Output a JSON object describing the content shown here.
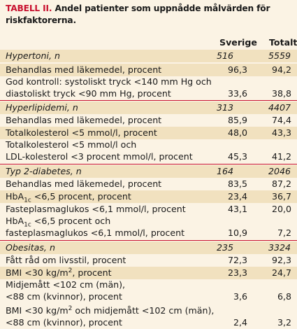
{
  "title": {
    "label": "TABELL II.",
    "text": "Andel patienter som uppnådde målvärden för riskfaktorerna."
  },
  "columns": [
    "Sverige",
    "Totalt"
  ],
  "rows": [
    {
      "kind": "group",
      "label": "Hypertoni, n",
      "sverige": "516",
      "totalt": "5559"
    },
    {
      "kind": "item",
      "label": "Behandlas med läkemedel, procent",
      "sverige": "96,3",
      "totalt": "94,2"
    },
    {
      "kind": "item",
      "label": "God kontroll: systoliskt tryck <140 mm Hg och",
      "label2": "diastoliskt tryck <90 mm Hg, procent",
      "sverige": "33,6",
      "totalt": "38,8"
    },
    {
      "kind": "group",
      "label": "Hyperlipidemi, n",
      "sverige": "313",
      "totalt": "4407"
    },
    {
      "kind": "item",
      "label": "Behandlas med läkemedel, procent",
      "sverige": "85,9",
      "totalt": "74,4"
    },
    {
      "kind": "item",
      "label": "Totalkolesterol <5 mmol/l, procent",
      "sverige": "48,0",
      "totalt": "43,3"
    },
    {
      "kind": "item",
      "label": "Totalkolesterol <5 mmol/l och",
      "label2": "LDL-kolesterol <3 procent mmol/l, procent",
      "sverige": "45,3",
      "totalt": "41,2"
    },
    {
      "kind": "group",
      "label": "Typ 2-diabetes, n",
      "sverige": "164",
      "totalt": "2046"
    },
    {
      "kind": "item",
      "label": "Behandlas med läkemedel, procent",
      "sverige": "83,5",
      "totalt": "87,2"
    },
    {
      "kind": "item",
      "label": "HbA1c <6,5 procent, procent",
      "sverige": "23,4",
      "totalt": "36,7"
    },
    {
      "kind": "item",
      "label": "Fasteplasmaglukos <6,1 mmol/l, procent",
      "sverige": "43,1",
      "totalt": "20,0"
    },
    {
      "kind": "item",
      "label": "HbA1c <6,5 procent och",
      "label2": "fasteplasmaglukos <6,1 mmol/l, procent",
      "sverige": "10,9",
      "totalt": "7,2"
    },
    {
      "kind": "group",
      "label": "Obesitas, n",
      "sverige": "235",
      "totalt": "3324"
    },
    {
      "kind": "item",
      "label": "Fått råd om livsstil, procent",
      "sverige": "72,3",
      "totalt": "92,3"
    },
    {
      "kind": "item",
      "label": "BMI <30 kg/m2, procent",
      "sverige": "23,3",
      "totalt": "24,7"
    },
    {
      "kind": "item",
      "label": "Midjemått <102 cm (män),",
      "label2": "<88 cm (kvinnor), procent",
      "sverige": "3,6",
      "totalt": "6,8"
    },
    {
      "kind": "item",
      "label": "BMI <30 kg/m2 och midjemått <102 cm (män),",
      "label2": "<88 cm (kvinnor), procent",
      "sverige": "2,4",
      "totalt": "3,2"
    }
  ]
}
